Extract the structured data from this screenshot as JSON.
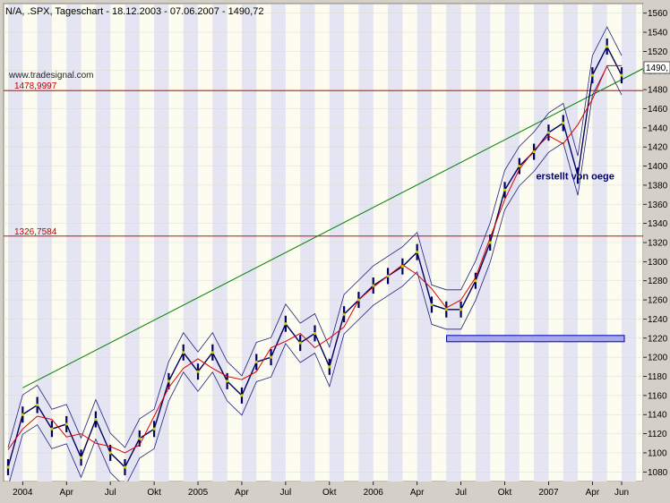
{
  "header": {
    "title": "N/A, .SPX, Tageschart - 18.12.2003 - 07.06.2007 - 1490,72",
    "watermark": "www.tradesignal.com"
  },
  "chart_data": {
    "type": "line",
    "title": "N/A, .SPX, Tageschart - 18.12.2003 - 07.06.2007 - 1490,72",
    "ylim": [
      1070,
      1570
    ],
    "y_ticks": [
      1080,
      1100,
      1120,
      1140,
      1160,
      1180,
      1200,
      1220,
      1240,
      1260,
      1280,
      1300,
      1320,
      1340,
      1360,
      1380,
      1400,
      1420,
      1440,
      1460,
      1480,
      1500,
      1520,
      1540,
      1560
    ],
    "x_ticks": [
      "2004",
      "Apr",
      "Jul",
      "Okt",
      "2005",
      "Apr",
      "Jul",
      "Okt",
      "2006",
      "Apr",
      "Jul",
      "Okt",
      "2007",
      "Apr",
      "Jun"
    ],
    "last_value_label": "1490,",
    "horizontal_lines": [
      {
        "label": "1478,9997",
        "value": 1479.0
      },
      {
        "label": "1326,7584",
        "value": 1326.76
      }
    ],
    "trendline": {
      "start": {
        "x": "2004-01",
        "y": 1168
      },
      "end": {
        "x": "2007-06",
        "y": 1502
      }
    },
    "annotation": "erstellt von oege",
    "support_box_level": 1220,
    "series": [
      {
        "name": "",
        "x": [
          "2003-12",
          "2004-01",
          "2004-02",
          "2004-03",
          "2004-04",
          "2004-05",
          "2004-06",
          "2004-07",
          "2004-08",
          "2004-09",
          "2004-10",
          "2004-11",
          "2004-12",
          "2005-01",
          "2005-02",
          "2005-03",
          "2005-04",
          "2005-05",
          "2005-06",
          "2005-07",
          "2005-08",
          "2005-09",
          "2005-10",
          "2005-11",
          "2005-12",
          "2006-01",
          "2006-02",
          "2006-03",
          "2006-04",
          "2006-05",
          "2006-06",
          "2006-07",
          "2006-08",
          "2006-09",
          "2006-10",
          "2006-11",
          "2006-12",
          "2007-01",
          "2007-02",
          "2007-03",
          "2007-04",
          "2007-05",
          "2007-06"
        ],
        "values": [
          1085,
          1140,
          1150,
          1125,
          1130,
          1095,
          1135,
          1100,
          1085,
          1115,
          1125,
          1175,
          1205,
          1185,
          1205,
          1175,
          1160,
          1195,
          1200,
          1235,
          1215,
          1225,
          1190,
          1245,
          1260,
          1275,
          1285,
          1295,
          1310,
          1255,
          1250,
          1250,
          1280,
          1320,
          1375,
          1400,
          1415,
          1435,
          1445,
          1390,
          1495,
          1525,
          1495
        ]
      }
    ]
  }
}
